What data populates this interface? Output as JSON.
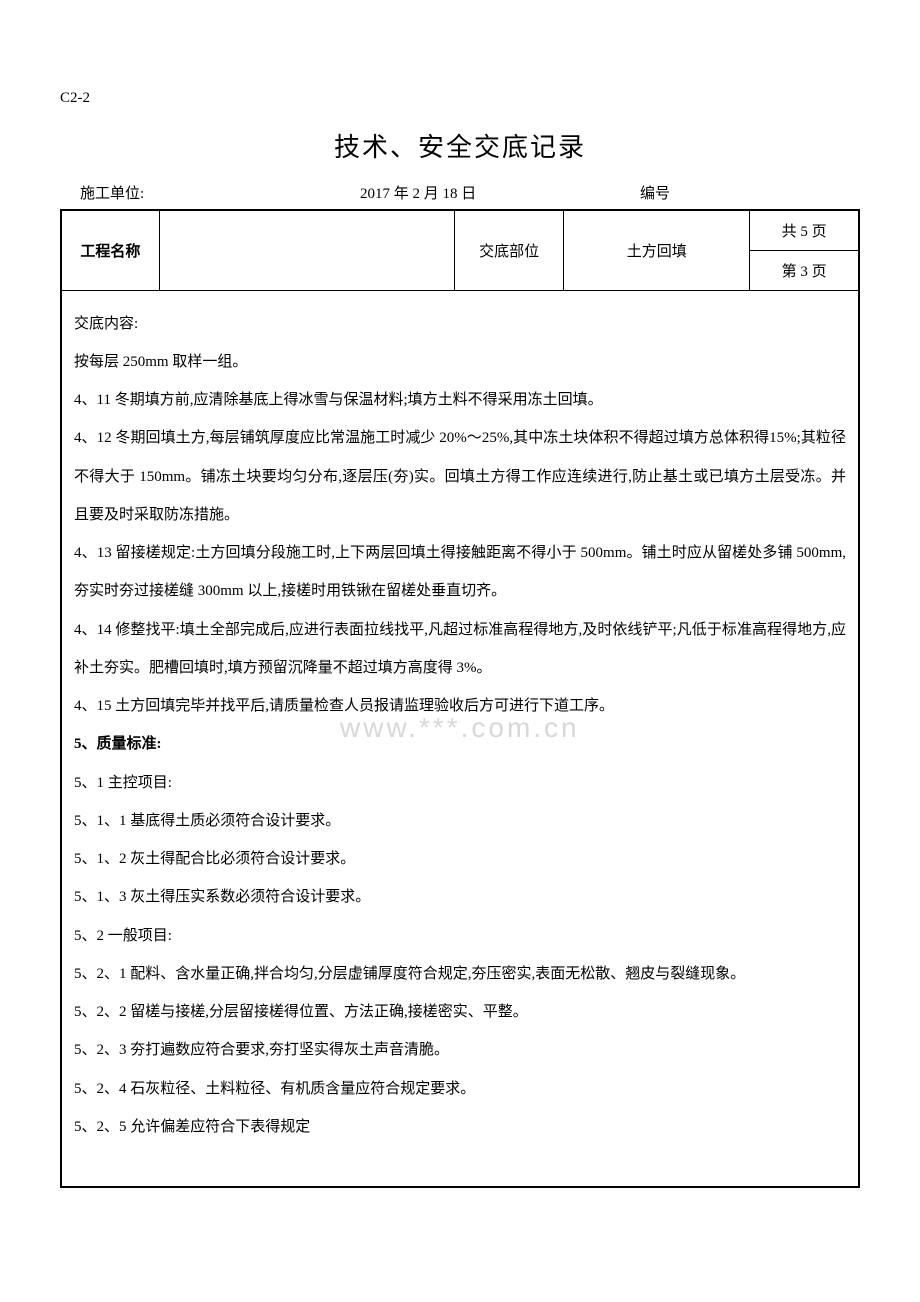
{
  "doc_code": "C2-2",
  "title": "技术、安全交底记录",
  "header": {
    "unit_label": "施工单位:",
    "date": "2017 年 2 月 18 日",
    "number_label": "编号"
  },
  "info": {
    "project_label": "工程名称",
    "project_value": "",
    "part_label": "交底部位",
    "part_value": "土方回填",
    "total_pages": "共 5 页",
    "current_page": "第 3 页"
  },
  "content": {
    "heading": "交底内容:",
    "lines": [
      "按每层 250mm 取样一组。",
      "4、11  冬期填方前,应清除基底上得冰雪与保温材料;填方土料不得采用冻土回填。",
      "4、12  冬期回填土方,每层铺筑厚度应比常温施工时减少 20%～25%,其中冻土块体积不得超过填方总体积得15%;其粒径不得大于 150mm。铺冻土块要均匀分布,逐层压(夯)实。回填土方得工作应连续进行,防止基土或已填方土层受冻。并且要及时采取防冻措施。",
      "4、13  留接槎规定:土方回填分段施工时,上下两层回填土得接触距离不得小于 500mm。铺土时应从留槎处多铺 500mm,夯实时夯过接槎缝 300mm 以上,接槎时用铁锹在留槎处垂直切齐。",
      "4、14  修整找平:填土全部完成后,应进行表面拉线找平,凡超过标准高程得地方,及时依线铲平;凡低于标准高程得地方,应补土夯实。肥槽回填时,填方预留沉降量不超过填方高度得 3%。",
      "4、15  土方回填完毕并找平后,请质量检查人员报请监理验收后方可进行下道工序。"
    ],
    "section5_title": "5、质量标准:",
    "section5_lines": [
      "5、1 主控项目:",
      "5、1、1 基底得土质必须符合设计要求。",
      "5、1、2 灰土得配合比必须符合设计要求。",
      "5、1、3 灰土得压实系数必须符合设计要求。",
      "5、2 一般项目:",
      "5、2、1 配料、含水量正确,拌合均匀,分层虚铺厚度符合规定,夯压密实,表面无松散、翘皮与裂缝现象。",
      "5、2、2 留槎与接槎,分层留接槎得位置、方法正确,接槎密实、平整。",
      "5、2、3 夯打遍数应符合要求,夯打坚实得灰土声音清脆。",
      "5、2、4 石灰粒径、土料粒径、有机质含量应符合规定要求。",
      "5、2、5 允许偏差应符合下表得规定"
    ]
  },
  "watermark": "www.***.com.cn",
  "colors": {
    "text": "#000000",
    "background": "#ffffff",
    "border": "#000000",
    "watermark": "#d8d8d8"
  },
  "typography": {
    "body_fontsize": 14.5,
    "title_fontsize": 26,
    "line_height": 2.55
  }
}
